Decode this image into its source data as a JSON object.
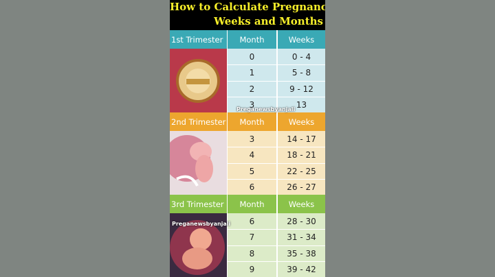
{
  "title": {
    "line1": "How to Calculate Pregnancy",
    "line2": "Weeks and Months"
  },
  "sections": [
    {
      "label": "1st Trimester",
      "month_header": "Month",
      "weeks_header": "Weeks",
      "rows": [
        [
          "0",
          "0 - 4"
        ],
        [
          "1",
          "5 - 8"
        ],
        [
          "2",
          "9 - 12"
        ],
        [
          "3",
          "13"
        ]
      ]
    },
    {
      "label": "2nd Trimester",
      "month_header": "Month",
      "weeks_header": "Weeks",
      "rows": [
        [
          "3",
          "14 - 17"
        ],
        [
          "4",
          "18 - 21"
        ],
        [
          "5",
          "22 - 25"
        ],
        [
          "6",
          "26 - 27"
        ]
      ]
    },
    {
      "label": "3rd Trimester",
      "month_header": "Month",
      "weeks_header": "Weeks",
      "rows": [
        [
          "6",
          "28 - 30"
        ],
        [
          "7",
          "31 - 34"
        ],
        [
          "8",
          "35 - 38"
        ],
        [
          "9",
          "39 - 42"
        ]
      ]
    }
  ],
  "watermarks": [
    "Preganewsbyanjali",
    "Preganewsbyanjali"
  ]
}
